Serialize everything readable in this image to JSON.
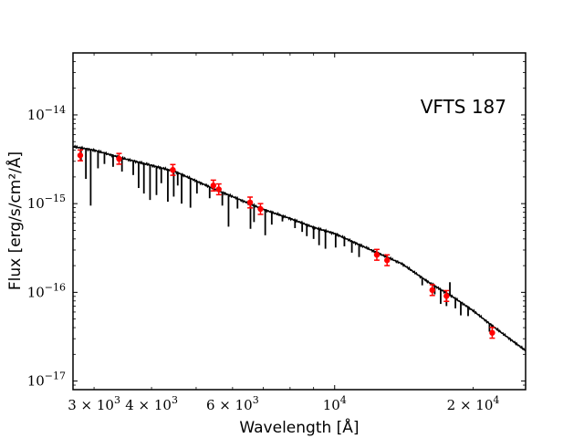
{
  "chart_data": {
    "type": "scatter",
    "xlabel": "Wavelength [Å]",
    "ylabel": "Flux [erg/s/cm²/Å]",
    "annotation": "VFTS 187",
    "xscale": "log",
    "yscale": "log",
    "xlim": [
      2700,
      26000
    ],
    "ylim": [
      8e-18,
      5e-14
    ],
    "x_ticks": [
      {
        "value": 3000,
        "mantissa": "3",
        "exp": "3"
      },
      {
        "value": 4000,
        "mantissa": "4",
        "exp": "3"
      },
      {
        "value": 6000,
        "mantissa": "6",
        "exp": "3"
      },
      {
        "value": 10000,
        "mantissa": "",
        "exp": "4"
      },
      {
        "value": 20000,
        "mantissa": "2",
        "exp": "4"
      }
    ],
    "y_ticks": [
      {
        "value": 1e-17,
        "exp": "−17"
      },
      {
        "value": 1e-16,
        "exp": "−16"
      },
      {
        "value": 1e-15,
        "exp": "−15"
      },
      {
        "value": 1e-14,
        "exp": "−14"
      }
    ],
    "series": [
      {
        "kind": "model_spectrum",
        "color": "#000000",
        "continuum_x": [
          2700,
          3000,
          3500,
          4000,
          4500,
          5000,
          5500,
          6000,
          7000,
          8000,
          9000,
          10000,
          12000,
          14000,
          16000,
          18000,
          20000,
          22000,
          24000,
          26000
        ],
        "continuum_y": [
          4.4e-15,
          4e-15,
          3.2e-15,
          2.7e-15,
          2.3e-15,
          1.8e-15,
          1.45e-15,
          1.2e-15,
          8.6e-16,
          6.8e-16,
          5.4e-16,
          4.6e-16,
          3e-16,
          2.1e-16,
          1.3e-16,
          9e-17,
          6.2e-17,
          4.2e-17,
          3e-17,
          2.2e-17
        ],
        "absorption_lines": [
          {
            "x": 2810,
            "y": 3e-15
          },
          {
            "x": 2880,
            "y": 1.9e-15
          },
          {
            "x": 2950,
            "y": 9.5e-16
          },
          {
            "x": 3060,
            "y": 2.5e-15
          },
          {
            "x": 3160,
            "y": 2.8e-15
          },
          {
            "x": 3300,
            "y": 2.6e-15
          },
          {
            "x": 3450,
            "y": 2.3e-15
          },
          {
            "x": 3650,
            "y": 2.1e-15
          },
          {
            "x": 3750,
            "y": 1.5e-15
          },
          {
            "x": 3850,
            "y": 1.3e-15
          },
          {
            "x": 3970,
            "y": 1.1e-15
          },
          {
            "x": 4100,
            "y": 1.25e-15
          },
          {
            "x": 4200,
            "y": 1.7e-15
          },
          {
            "x": 4340,
            "y": 1.05e-15
          },
          {
            "x": 4470,
            "y": 1.2e-15
          },
          {
            "x": 4560,
            "y": 1.6e-15
          },
          {
            "x": 4650,
            "y": 1e-15
          },
          {
            "x": 4860,
            "y": 9e-16
          },
          {
            "x": 5020,
            "y": 1.3e-15
          },
          {
            "x": 5350,
            "y": 1.15e-15
          },
          {
            "x": 5700,
            "y": 9.5e-16
          },
          {
            "x": 5880,
            "y": 5.5e-16
          },
          {
            "x": 6150,
            "y": 8.8e-16
          },
          {
            "x": 6563,
            "y": 5.2e-16
          },
          {
            "x": 6680,
            "y": 6.2e-16
          },
          {
            "x": 7065,
            "y": 4.4e-16
          },
          {
            "x": 7300,
            "y": 5.8e-16
          },
          {
            "x": 7700,
            "y": 6.3e-16
          },
          {
            "x": 8200,
            "y": 5.3e-16
          },
          {
            "x": 8500,
            "y": 4.8e-16
          },
          {
            "x": 8700,
            "y": 4.3e-16
          },
          {
            "x": 9000,
            "y": 4e-16
          },
          {
            "x": 9250,
            "y": 3.4e-16
          },
          {
            "x": 9550,
            "y": 3.1e-16
          },
          {
            "x": 10050,
            "y": 3.2e-16
          },
          {
            "x": 10500,
            "y": 3.3e-16
          },
          {
            "x": 10900,
            "y": 2.8e-16
          },
          {
            "x": 11300,
            "y": 2.5e-16
          },
          {
            "x": 15500,
            "y": 1.2e-16
          },
          {
            "x": 16500,
            "y": 9.5e-17
          },
          {
            "x": 17000,
            "y": 7.4e-17
          },
          {
            "x": 17500,
            "y": 7e-17
          },
          {
            "x": 18300,
            "y": 6.6e-17
          },
          {
            "x": 18800,
            "y": 5.5e-17
          },
          {
            "x": 19500,
            "y": 5.4e-17
          },
          {
            "x": 21700,
            "y": 3.6e-17
          }
        ],
        "emission_lines": [
          {
            "x": 17800,
            "y": 1.3e-16
          }
        ]
      },
      {
        "kind": "photometry",
        "color": "#ff0000",
        "points": [
          {
            "x": 2800,
            "y": 3.5e-15
          },
          {
            "x": 3400,
            "y": 3.2e-15
          },
          {
            "x": 4450,
            "y": 2.4e-15
          },
          {
            "x": 5450,
            "y": 1.6e-15
          },
          {
            "x": 5600,
            "y": 1.45e-15
          },
          {
            "x": 6550,
            "y": 1.03e-15
          },
          {
            "x": 6900,
            "y": 8.7e-16
          },
          {
            "x": 12350,
            "y": 2.65e-16
          },
          {
            "x": 13000,
            "y": 2.3e-16
          },
          {
            "x": 16300,
            "y": 1.06e-16
          },
          {
            "x": 17500,
            "y": 9.1e-17
          },
          {
            "x": 22000,
            "y": 3.5e-17
          }
        ]
      }
    ]
  }
}
